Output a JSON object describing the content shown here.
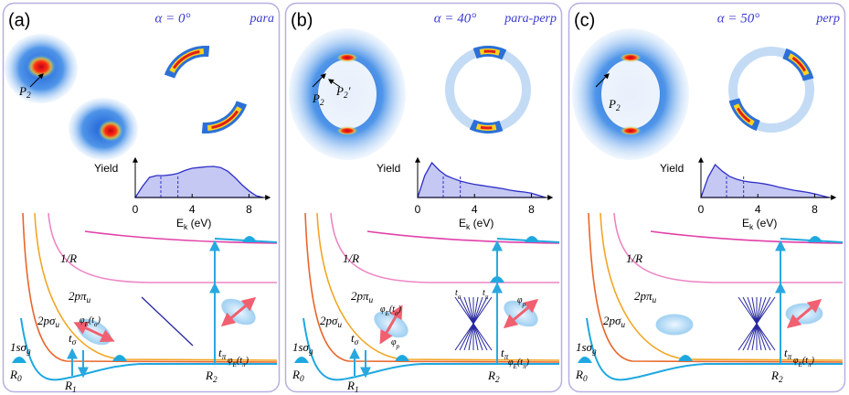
{
  "panels": [
    {
      "label": "(a)",
      "alpha": "α = 0°",
      "mode": "para",
      "labels": {
        "P2": [
          "P",
          "2"
        ],
        "1/R": [
          "1/R"
        ],
        "2ppi": [
          "2pπ",
          "u"
        ],
        "2psig": [
          "2pσ",
          "u"
        ],
        "1s": [
          "1sσ",
          "g"
        ],
        "R0": [
          "R",
          "0"
        ],
        "R1": [
          "R",
          "1"
        ],
        "R2": [
          "R",
          "2"
        ],
        "tsig": [
          "t",
          "σ"
        ],
        "tpi": [
          "t",
          "π"
        ],
        "phis": [
          "φ",
          "E",
          "(t",
          "σ",
          ")"
        ],
        "phip": [
          "φ",
          "E",
          "(t",
          "π",
          ")"
        ]
      },
      "chart": {
        "ylabel": "Yield",
        "xlabel": [
          "E",
          "k",
          " (eV)"
        ],
        "xlim": [
          0,
          9
        ],
        "ylim": [
          0,
          1
        ],
        "xticks": [
          0,
          4,
          8
        ],
        "markers": [
          1.8,
          3.0
        ],
        "x": [
          0,
          0.5,
          1,
          1.5,
          2,
          2.5,
          3,
          3.5,
          4,
          4.5,
          5,
          5.5,
          6,
          6.5,
          7,
          7.5,
          8,
          8.5,
          9
        ],
        "values": [
          0,
          0.3,
          0.55,
          0.6,
          0.6,
          0.62,
          0.66,
          0.74,
          0.8,
          0.82,
          0.84,
          0.85,
          0.82,
          0.72,
          0.55,
          0.35,
          0.18,
          0.05,
          0
        ]
      }
    },
    {
      "label": "(b)",
      "alpha": "α = 40°",
      "mode": "para-perp",
      "labels": {
        "P2": [
          "P",
          "2"
        ],
        "P2p": [
          "P",
          "2",
          "′"
        ],
        "1/R": [
          "1/R"
        ],
        "2ppi": [
          "2pπ",
          "u"
        ],
        "2psig": [
          "2pσ",
          "u"
        ],
        "1s": [
          "1sσ",
          "g"
        ],
        "R0": [
          "R",
          "0"
        ],
        "R1": [
          "R",
          "1"
        ],
        "R2": [
          "R",
          "2"
        ],
        "tsig": [
          "t",
          "σ"
        ],
        "tpi": [
          "t",
          "π"
        ],
        "phis": [
          "φ",
          "E",
          "(t",
          "σ",
          ")"
        ],
        "phip": [
          "φ",
          "E",
          "(t",
          "π",
          ")"
        ],
        "phi_p": [
          "φ",
          "p"
        ],
        "phi_p2": [
          "φ",
          "p"
        ],
        "fan_s": [
          "t",
          "σ"
        ],
        "fan_p": [
          "t",
          "π"
        ]
      },
      "chart": {
        "ylabel": "Yield",
        "xlabel": [
          "E",
          "k",
          " (eV)"
        ],
        "xlim": [
          0,
          9
        ],
        "ylim": [
          0,
          1
        ],
        "xticks": [
          0,
          4,
          8
        ],
        "markers": [
          1.8,
          3.0
        ],
        "x": [
          0,
          0.5,
          1,
          1.5,
          2,
          2.5,
          3,
          3.5,
          4,
          4.5,
          5,
          5.5,
          6,
          6.5,
          7,
          7.5,
          8,
          8.5,
          9
        ],
        "values": [
          0,
          0.6,
          0.95,
          0.75,
          0.6,
          0.52,
          0.45,
          0.4,
          0.36,
          0.33,
          0.3,
          0.27,
          0.24,
          0.2,
          0.17,
          0.15,
          0.12,
          0.06,
          0
        ]
      }
    },
    {
      "label": "(c)",
      "alpha": "α = 50°",
      "mode": "perp",
      "labels": {
        "P2": [
          "P",
          "2"
        ],
        "1/R": [
          "1/R"
        ],
        "2ppi": [
          "2pπ",
          "u"
        ],
        "2psig": [
          "2pσ",
          "u"
        ],
        "1s": [
          "1sσ",
          "g"
        ],
        "R0": [
          "R",
          "0"
        ],
        "R2": [
          "R",
          "2"
        ],
        "tpi": [
          "t",
          "π"
        ],
        "phip": [
          "φ",
          "E",
          "(t",
          "π",
          ")"
        ]
      },
      "chart": {
        "ylabel": "Yield",
        "xlabel": [
          "E",
          "k",
          " (eV)"
        ],
        "xlim": [
          0,
          9
        ],
        "ylim": [
          0,
          1
        ],
        "xticks": [
          0,
          4,
          8
        ],
        "markers": [
          1.8,
          3.0
        ],
        "x": [
          0,
          0.5,
          1,
          1.5,
          2,
          2.5,
          3,
          3.5,
          4,
          4.5,
          5,
          5.5,
          6,
          6.5,
          7,
          7.5,
          8,
          8.5,
          9
        ],
        "values": [
          0,
          0.55,
          0.9,
          0.72,
          0.58,
          0.5,
          0.45,
          0.42,
          0.4,
          0.37,
          0.33,
          0.28,
          0.24,
          0.2,
          0.17,
          0.14,
          0.1,
          0.05,
          0
        ]
      }
    }
  ]
}
